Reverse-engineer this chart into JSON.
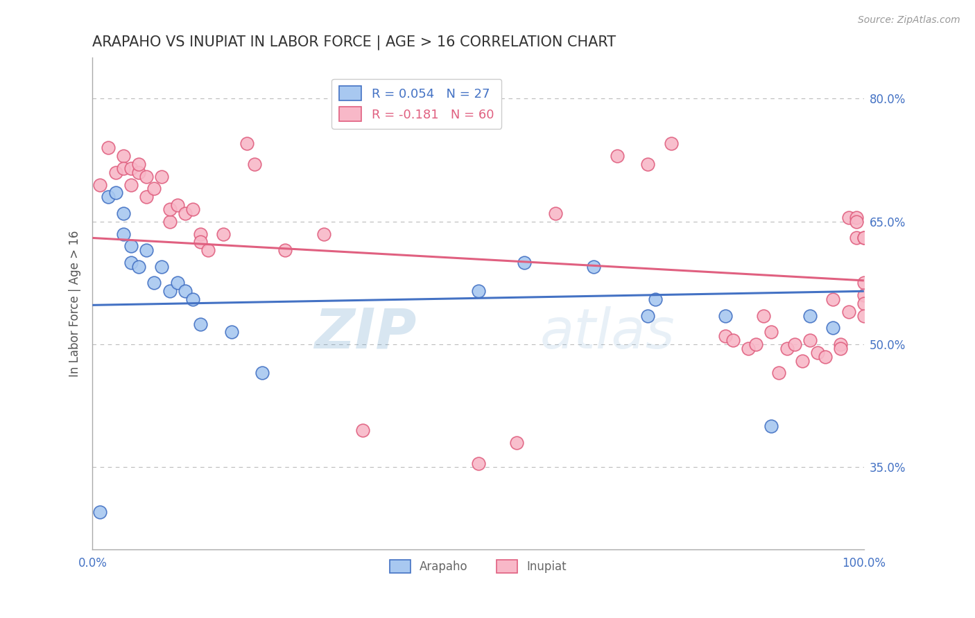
{
  "title": "ARAPAHO VS INUPIAT IN LABOR FORCE | AGE > 16 CORRELATION CHART",
  "source_text": "Source: ZipAtlas.com",
  "ylabel": "In Labor Force | Age > 16",
  "watermark_zip": "ZIP",
  "watermark_atlas": "atlas",
  "xmin": 0.0,
  "xmax": 1.0,
  "ymin": 0.25,
  "ymax": 0.85,
  "yticks": [
    0.35,
    0.5,
    0.65,
    0.8
  ],
  "ytick_labels": [
    "35.0%",
    "50.0%",
    "65.0%",
    "80.0%"
  ],
  "arapaho_color": "#A8C8F0",
  "inupiat_color": "#F8B8C8",
  "arapaho_edge_color": "#4472C4",
  "inupiat_edge_color": "#E06080",
  "arapaho_line_color": "#4472C4",
  "inupiat_line_color": "#E06080",
  "arapaho_R": 0.054,
  "arapaho_N": 27,
  "inupiat_R": -0.181,
  "inupiat_N": 60,
  "arapaho_x": [
    0.01,
    0.02,
    0.03,
    0.04,
    0.04,
    0.05,
    0.05,
    0.06,
    0.07,
    0.08,
    0.09,
    0.1,
    0.11,
    0.12,
    0.13,
    0.14,
    0.18,
    0.22,
    0.5,
    0.56,
    0.65,
    0.72,
    0.73,
    0.82,
    0.88,
    0.93,
    0.96
  ],
  "arapaho_y": [
    0.295,
    0.68,
    0.685,
    0.635,
    0.66,
    0.62,
    0.6,
    0.595,
    0.615,
    0.575,
    0.595,
    0.565,
    0.575,
    0.565,
    0.555,
    0.525,
    0.515,
    0.465,
    0.565,
    0.6,
    0.595,
    0.535,
    0.555,
    0.535,
    0.4,
    0.535,
    0.52
  ],
  "inupiat_x": [
    0.01,
    0.02,
    0.03,
    0.04,
    0.04,
    0.05,
    0.05,
    0.06,
    0.06,
    0.07,
    0.07,
    0.08,
    0.09,
    0.1,
    0.1,
    0.11,
    0.12,
    0.13,
    0.14,
    0.14,
    0.15,
    0.17,
    0.2,
    0.21,
    0.25,
    0.3,
    0.35,
    0.5,
    0.55,
    0.6,
    0.68,
    0.72,
    0.75,
    0.82,
    0.83,
    0.85,
    0.86,
    0.87,
    0.88,
    0.89,
    0.9,
    0.91,
    0.92,
    0.93,
    0.94,
    0.95,
    0.96,
    0.97,
    0.97,
    0.98,
    0.98,
    0.99,
    0.99,
    0.99,
    1.0,
    1.0,
    1.0,
    1.0,
    1.0,
    1.0
  ],
  "inupiat_y": [
    0.695,
    0.74,
    0.71,
    0.73,
    0.715,
    0.715,
    0.695,
    0.71,
    0.72,
    0.68,
    0.705,
    0.69,
    0.705,
    0.65,
    0.665,
    0.67,
    0.66,
    0.665,
    0.635,
    0.625,
    0.615,
    0.635,
    0.745,
    0.72,
    0.615,
    0.635,
    0.395,
    0.355,
    0.38,
    0.66,
    0.73,
    0.72,
    0.745,
    0.51,
    0.505,
    0.495,
    0.5,
    0.535,
    0.515,
    0.465,
    0.495,
    0.5,
    0.48,
    0.505,
    0.49,
    0.485,
    0.555,
    0.5,
    0.495,
    0.54,
    0.655,
    0.655,
    0.65,
    0.63,
    0.63,
    0.63,
    0.575,
    0.56,
    0.55,
    0.535
  ],
  "background_color": "#FFFFFF",
  "grid_color": "#BBBBBB",
  "title_color": "#333333",
  "tick_label_color": "#4472C4",
  "source_color": "#999999",
  "ylabel_color": "#555555"
}
